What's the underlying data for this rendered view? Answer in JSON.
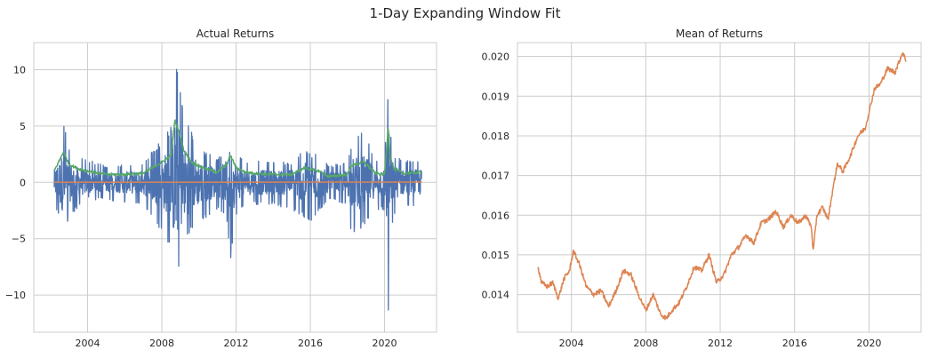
{
  "figure": {
    "title": "1-Day Expanding Window Fit"
  },
  "chart_data": [
    {
      "type": "line",
      "title": "Actual Returns",
      "xlabel": "",
      "ylabel": "",
      "xlim": [
        2001.1,
        2022.8
      ],
      "ylim": [
        -13.3,
        12.4
      ],
      "xticks": [
        "2004",
        "2008",
        "2012",
        "2016",
        "2020"
      ],
      "yticks": [
        "−10",
        "−5",
        "0",
        "5",
        "10"
      ],
      "xtick_values": [
        2004,
        2008,
        2012,
        2016,
        2020
      ],
      "ytick_values": [
        -10,
        -5,
        0,
        5,
        10
      ],
      "grid": true,
      "legend": "none",
      "x_range": [
        2002.2,
        2022.0
      ],
      "series": [
        {
          "role": "returns",
          "color": "#4c72b0",
          "envelope": {
            "x": [
              2002.2,
              2002.7,
              2003.0,
              2003.5,
              2004.0,
              2005.0,
              2006.0,
              2007.0,
              2007.6,
              2008.0,
              2008.5,
              2008.7,
              2008.9,
              2009.2,
              2009.6,
              2010.2,
              2010.6,
              2011.0,
              2011.5,
              2011.7,
              2012.0,
              2012.5,
              2013.0,
              2014.0,
              2015.0,
              2015.7,
              2016.1,
              2016.5,
              2017.0,
              2018.0,
              2018.2,
              2018.9,
              2019.5,
              2020.0,
              2020.2,
              2020.3,
              2020.5,
              2021.0,
              2022.0
            ],
            "high": [
              2.0,
              5.5,
              3.2,
              2.5,
              2.0,
              1.5,
              1.6,
              1.8,
              3.0,
              4.0,
              5.0,
              11.2,
              9.5,
              6.0,
              4.5,
              3.0,
              2.5,
              2.0,
              3.5,
              4.6,
              2.8,
              2.0,
              2.0,
              1.8,
              1.8,
              3.0,
              2.5,
              2.8,
              1.5,
              1.8,
              3.5,
              4.8,
              1.9,
              2.0,
              9.0,
              4.5,
              2.5,
              2.0,
              2.0
            ],
            "low": [
              -2.0,
              -4.3,
              -3.2,
              -2.2,
              -1.5,
              -1.6,
              -1.8,
              -2.0,
              -3.5,
              -4.5,
              -6.0,
              -9.0,
              -8.8,
              -5.5,
              -4.5,
              -3.5,
              -3.0,
              -2.5,
              -3.5,
              -7.0,
              -3.0,
              -2.0,
              -2.0,
              -2.0,
              -2.5,
              -3.2,
              -3.5,
              -2.5,
              -1.5,
              -2.0,
              -4.5,
              -4.0,
              -2.5,
              -2.5,
              -12.2,
              -5.0,
              -3.0,
              -2.0,
              -2.2
            ]
          }
        },
        {
          "role": "volatility",
          "color": "#55a868",
          "x": [
            2002.2,
            2002.7,
            2003.0,
            2003.5,
            2004.0,
            2005.0,
            2006.0,
            2007.0,
            2007.6,
            2008.0,
            2008.5,
            2008.7,
            2008.9,
            2009.2,
            2009.6,
            2010.2,
            2010.6,
            2011.0,
            2011.5,
            2011.7,
            2012.0,
            2012.5,
            2013.0,
            2014.0,
            2015.0,
            2015.7,
            2016.1,
            2016.5,
            2017.0,
            2018.0,
            2018.2,
            2018.9,
            2019.5,
            2020.0,
            2020.2,
            2020.3,
            2020.5,
            2021.0,
            2022.0
          ],
          "y": [
            1.0,
            2.7,
            1.6,
            1.2,
            1.0,
            0.7,
            0.7,
            0.8,
            1.4,
            1.8,
            2.4,
            5.5,
            4.6,
            2.8,
            1.8,
            1.3,
            1.1,
            0.9,
            1.6,
            2.4,
            1.3,
            0.9,
            0.8,
            0.7,
            0.7,
            1.3,
            1.1,
            1.0,
            0.5,
            0.7,
            1.5,
            1.8,
            0.8,
            0.7,
            5.0,
            2.3,
            1.2,
            0.8,
            0.9
          ]
        },
        {
          "role": "mean",
          "color": "#dd8452",
          "x": [
            2002.2,
            2022.0
          ],
          "y": [
            0.015,
            0.02
          ]
        }
      ]
    },
    {
      "type": "line",
      "title": "Mean of Returns",
      "xlabel": "",
      "ylabel": "",
      "xlim": [
        2001.1,
        2022.8
      ],
      "ylim": [
        0.01305,
        0.02035
      ],
      "xticks": [
        "2004",
        "2008",
        "2012",
        "2016",
        "2020"
      ],
      "yticks": [
        "0.014",
        "0.015",
        "0.016",
        "0.017",
        "0.018",
        "0.019",
        "0.020"
      ],
      "xtick_values": [
        2004,
        2008,
        2012,
        2016,
        2020
      ],
      "ytick_values": [
        0.014,
        0.015,
        0.016,
        0.017,
        0.018,
        0.019,
        0.02
      ],
      "grid": true,
      "legend": "none",
      "series": [
        {
          "color": "#dd8452",
          "x": [
            2002.2,
            2002.4,
            2002.7,
            2003.0,
            2003.3,
            2003.6,
            2003.9,
            2004.1,
            2004.4,
            2004.8,
            2005.2,
            2005.6,
            2006.0,
            2006.4,
            2006.8,
            2007.2,
            2007.6,
            2008.0,
            2008.4,
            2008.8,
            2009.1,
            2009.4,
            2009.8,
            2010.2,
            2010.6,
            2011.0,
            2011.4,
            2011.8,
            2012.2,
            2012.6,
            2013.0,
            2013.4,
            2013.8,
            2014.2,
            2014.6,
            2015.0,
            2015.4,
            2015.8,
            2016.2,
            2016.6,
            2016.9,
            2017.0,
            2017.2,
            2017.5,
            2017.8,
            2018.0,
            2018.3,
            2018.6,
            2019.0,
            2019.4,
            2019.8,
            2020.0,
            2020.3,
            2020.6,
            2021.0,
            2021.4,
            2021.8,
            2022.0
          ],
          "y": [
            0.0147,
            0.0143,
            0.0142,
            0.0143,
            0.0139,
            0.0144,
            0.0146,
            0.0151,
            0.0148,
            0.0142,
            0.014,
            0.0141,
            0.0137,
            0.0141,
            0.0146,
            0.0145,
            0.014,
            0.0136,
            0.014,
            0.0135,
            0.0134,
            0.0136,
            0.0138,
            0.0142,
            0.0147,
            0.0146,
            0.015,
            0.0143,
            0.0145,
            0.015,
            0.0152,
            0.0155,
            0.0153,
            0.0158,
            0.0159,
            0.0161,
            0.0157,
            0.016,
            0.0158,
            0.016,
            0.0157,
            0.0151,
            0.016,
            0.0162,
            0.0159,
            0.0165,
            0.0173,
            0.0171,
            0.0175,
            0.018,
            0.0182,
            0.0186,
            0.0192,
            0.0193,
            0.0197,
            0.0196,
            0.0201,
            0.0199
          ]
        }
      ]
    }
  ]
}
